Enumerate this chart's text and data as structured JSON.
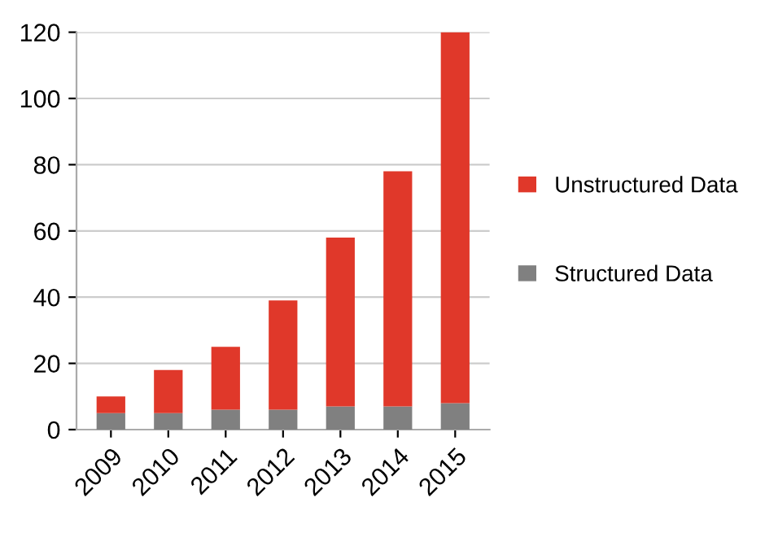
{
  "chart_data": {
    "type": "bar",
    "stacked": true,
    "categories": [
      "2009",
      "2010",
      "2011",
      "2012",
      "2013",
      "2014",
      "2015"
    ],
    "series": [
      {
        "name": "Structured Data",
        "color": "#808080",
        "values": [
          5,
          5,
          6,
          6,
          7,
          7,
          8
        ]
      },
      {
        "name": "Unstructured Data",
        "color": "#e0382a",
        "values": [
          5,
          13,
          19,
          33,
          51,
          71,
          112
        ]
      }
    ],
    "ylim": [
      0,
      120
    ],
    "yticks": [
      0,
      20,
      40,
      60,
      80,
      100,
      120
    ],
    "grid": "y",
    "legend": "right"
  }
}
